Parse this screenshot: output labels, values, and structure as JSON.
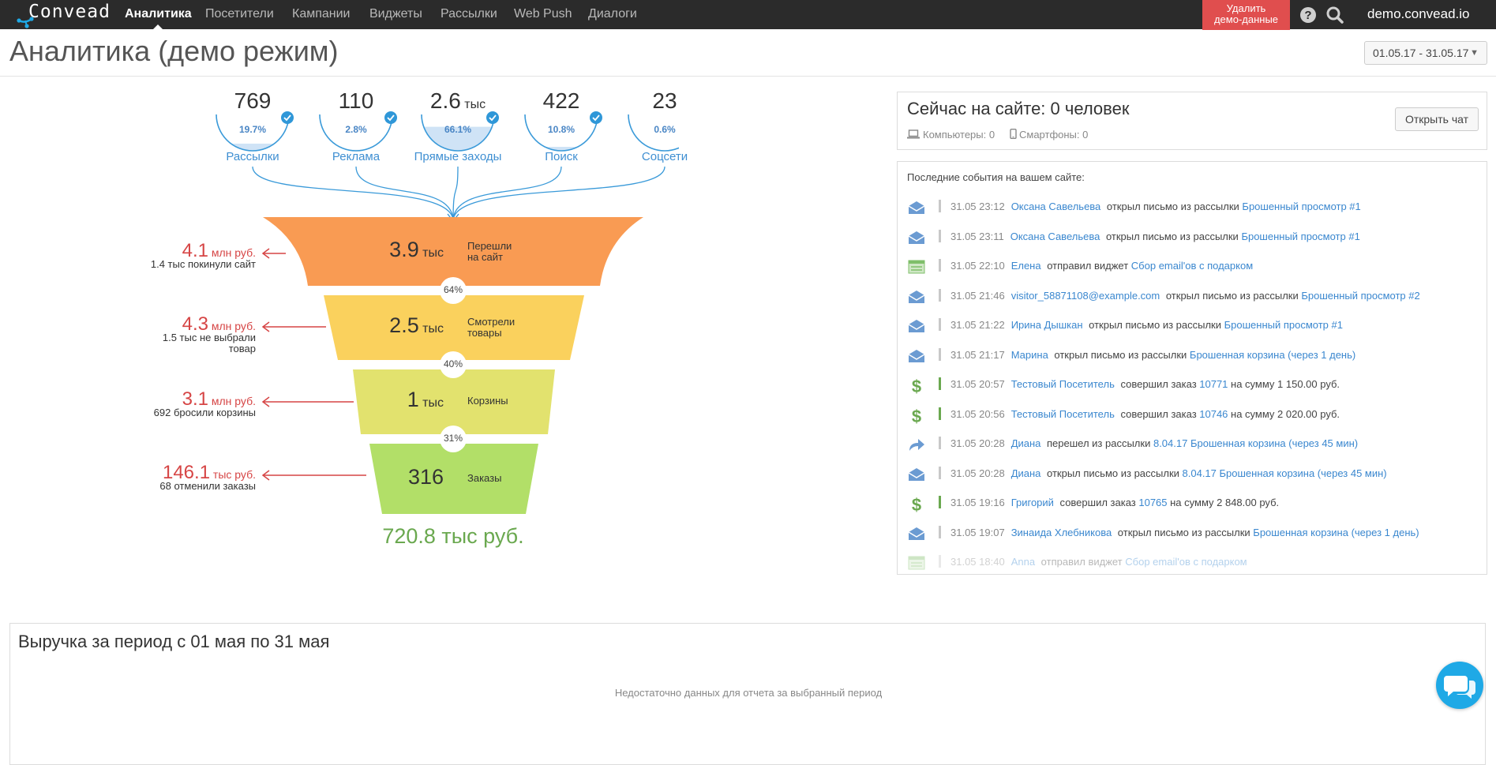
{
  "nav": {
    "logo": "Convead",
    "items": [
      "Аналитика",
      "Посетители",
      "Кампании",
      "Виджеты",
      "Рассылки",
      "Web Push",
      "Диалоги"
    ],
    "demo_button": [
      "Удалить",
      "демо-данные"
    ],
    "domain": "demo.convead.io"
  },
  "header": {
    "title": "Аналитика (демо режим)",
    "date_range": "01.05.17 - 31.05.17"
  },
  "funnel": {
    "sources": [
      {
        "value": "769",
        "unit": "",
        "percent": "19.7%",
        "percent_value": 19.7,
        "label": "Рассылки"
      },
      {
        "value": "110",
        "unit": "",
        "percent": "2.8%",
        "percent_value": 2.8,
        "label": "Реклама"
      },
      {
        "value": "2.6",
        "unit": "тыс",
        "percent": "66.1%",
        "percent_value": 66.1,
        "label": "Прямые заходы"
      },
      {
        "value": "422",
        "unit": "",
        "percent": "10.8%",
        "percent_value": 10.8,
        "label": "Поиск"
      },
      {
        "value": "23",
        "unit": "",
        "percent": "0.6%",
        "percent_value": 0.6,
        "label": "Соцсети"
      }
    ],
    "stages": [
      {
        "value": "3.9",
        "unit": "тыс",
        "name": [
          "Перешли",
          "на сайт"
        ],
        "color": "#f99b53"
      },
      {
        "value": "2.5",
        "unit": "тыс",
        "name": [
          "Смотрели",
          "товары"
        ],
        "color": "#fad15d"
      },
      {
        "value": "1",
        "unit": "тыс",
        "name": [
          "Корзины"
        ],
        "color": "#e2e26e"
      },
      {
        "value": "316",
        "unit": "",
        "name": [
          "Заказы"
        ],
        "color": "#b2df68"
      }
    ],
    "conversions": [
      "64%",
      "40%",
      "31%"
    ],
    "losses": [
      {
        "value": "4.1",
        "unit": "млн руб.",
        "desc": [
          "1.4 тыс покинули сайт"
        ]
      },
      {
        "value": "4.3",
        "unit": "млн руб.",
        "desc": [
          "1.5 тыс не выбрали",
          "товар"
        ]
      },
      {
        "value": "3.1",
        "unit": "млн руб.",
        "desc": [
          "692 бросили корзины"
        ]
      },
      {
        "value": "146.1",
        "unit": "тыс руб.",
        "desc": [
          "68 отменили заказы"
        ]
      }
    ],
    "total_revenue": "720.8 тыс руб."
  },
  "online": {
    "title": "Сейчас на сайте: 0 человек",
    "computers": "Компьютеры: 0",
    "smartphones": "Смартфоны: 0",
    "chat_button": "Открыть чат"
  },
  "events": {
    "heading": "Последние события на вашем сайте:",
    "items": [
      {
        "icon": "envelope-icon",
        "time": "31.05 23:12",
        "user": "Оксана Савельева",
        "action": "открыл письмо из рассылки",
        "target": "Брошенный просмотр #1",
        "suffix": ""
      },
      {
        "icon": "envelope-icon",
        "time": "31.05 23:11",
        "user": "Оксана Савельева",
        "action": "открыл письмо из рассылки",
        "target": "Брошенный просмотр #1",
        "suffix": ""
      },
      {
        "icon": "widget-icon",
        "time": "31.05 22:10",
        "user": "Елена",
        "action": "отправил виджет",
        "target": "Сбор email'ов с подарком",
        "suffix": ""
      },
      {
        "icon": "envelope-icon",
        "time": "31.05 21:46",
        "user": "visitor_58871108@example.com",
        "action": "открыл письмо из рассылки",
        "target": "Брошенный просмотр #2",
        "suffix": ""
      },
      {
        "icon": "envelope-icon",
        "time": "31.05 21:22",
        "user": "Ирина Дышкан",
        "action": "открыл письмо из рассылки",
        "target": "Брошенный просмотр #1",
        "suffix": ""
      },
      {
        "icon": "envelope-icon",
        "time": "31.05 21:17",
        "user": "Марина",
        "action": "открыл письмо из рассылки",
        "target": "Брошенная корзина (через 1 день)",
        "suffix": ""
      },
      {
        "icon": "dollar-icon",
        "time": "31.05 20:57",
        "user": "Тестовый Посетитель",
        "action": "совершил заказ",
        "target": "10771",
        "suffix": "на сумму 1 150.00 руб."
      },
      {
        "icon": "dollar-icon",
        "time": "31.05 20:56",
        "user": "Тестовый Посетитель",
        "action": "совершил заказ",
        "target": "10746",
        "suffix": "на сумму 2 020.00 руб."
      },
      {
        "icon": "redirect-icon",
        "time": "31.05 20:28",
        "user": "Диана",
        "action": "перешел из рассылки",
        "target": "8.04.17 Брошенная корзина (через 45 мин)",
        "suffix": ""
      },
      {
        "icon": "envelope-icon",
        "time": "31.05 20:28",
        "user": "Диана",
        "action": "открыл письмо из рассылки",
        "target": "8.04.17 Брошенная корзина (через 45 мин)",
        "suffix": ""
      },
      {
        "icon": "dollar-icon",
        "time": "31.05 19:16",
        "user": "Григорий",
        "action": "совершил заказ",
        "target": "10765",
        "suffix": "на сумму 2 848.00 руб."
      },
      {
        "icon": "envelope-icon",
        "time": "31.05 19:07",
        "user": "Зинаида Хлебникова",
        "action": "открыл письмо из рассылки",
        "target": "Брошенная корзина (через 1 день)",
        "suffix": ""
      },
      {
        "icon": "widget-icon",
        "time": "31.05 18:40",
        "user": "Anna",
        "action": "отправил виджет",
        "target": "Сбор email'ов с подарком",
        "suffix": ""
      }
    ]
  },
  "revenue": {
    "title": "Выручка за период с 01 мая по 31 мая",
    "empty": "Недостаточно данных для отчета за выбранный период"
  },
  "colors": {
    "navbar": "#2b2b2b",
    "accent_red": "#e04e4e",
    "link": "#3a87cf",
    "loss": "#d64545",
    "revenue": "#6aa84f",
    "chat": "#1fa9e6"
  }
}
